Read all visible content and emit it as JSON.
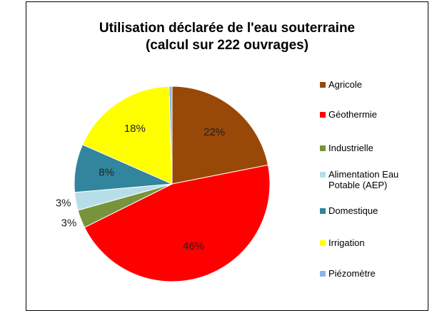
{
  "chart_data": {
    "type": "pie",
    "title": [
      "Utilisation déclarée de l'eau souterraine",
      "(calcul sur 222 ouvrages)"
    ],
    "categories": [
      "Agricole",
      "Géothermie",
      "Industrielle",
      "Alimentation Eau Potable (AEP)",
      "Domestique",
      "Irrigation",
      "Piézomètre"
    ],
    "values": [
      22,
      46,
      3,
      3,
      8,
      18,
      0.5
    ],
    "value_labels": [
      "22%",
      "46%",
      "3%",
      "3%",
      "8%",
      "18%",
      null
    ],
    "colors": [
      "#984807",
      "#ff0000",
      "#77933c",
      "#b7dee8",
      "#31859c",
      "#ffff00",
      "#8eb4e3"
    ],
    "legend": "right"
  }
}
